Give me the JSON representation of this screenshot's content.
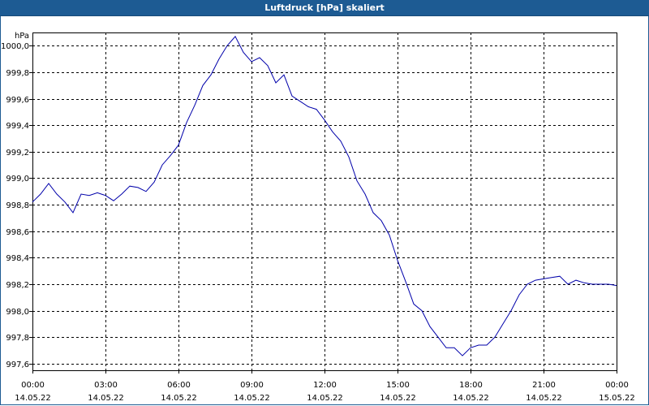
{
  "window": {
    "title": "Luftdruck [hPa] skaliert"
  },
  "colors": {
    "title_bar": "#1d5b93",
    "line": "#0000aa",
    "grid": "#000000"
  },
  "chart_data": {
    "type": "line",
    "title": "Luftdruck [hPa] skaliert",
    "ylabel": "hPa",
    "xlabel": "",
    "grid": true,
    "ylim": [
      997.55,
      1000.1
    ],
    "y_ticks": [
      {
        "value": 997.6,
        "label": "997,6"
      },
      {
        "value": 997.8,
        "label": "997,8"
      },
      {
        "value": 998.0,
        "label": "998,0"
      },
      {
        "value": 998.2,
        "label": "998,2"
      },
      {
        "value": 998.4,
        "label": "998,4"
      },
      {
        "value": 998.6,
        "label": "998,6"
      },
      {
        "value": 998.8,
        "label": "998,8"
      },
      {
        "value": 999.0,
        "label": "999,0"
      },
      {
        "value": 999.2,
        "label": "999,2"
      },
      {
        "value": 999.4,
        "label": "999,4"
      },
      {
        "value": 999.6,
        "label": "999,6"
      },
      {
        "value": 999.8,
        "label": "999,8"
      },
      {
        "value": 1000.0,
        "label": "1000,0"
      }
    ],
    "x_ticks": [
      {
        "time": "00:00",
        "date": "14.05.22"
      },
      {
        "time": "03:00",
        "date": "14.05.22"
      },
      {
        "time": "06:00",
        "date": "14.05.22"
      },
      {
        "time": "09:00",
        "date": "14.05.22"
      },
      {
        "time": "12:00",
        "date": "14.05.22"
      },
      {
        "time": "15:00",
        "date": "14.05.22"
      },
      {
        "time": "18:00",
        "date": "14.05.22"
      },
      {
        "time": "21:00",
        "date": "14.05.22"
      },
      {
        "time": "00:00",
        "date": "15.05.22"
      }
    ],
    "series": [
      {
        "x": [
          "00:00",
          "00:20",
          "00:40",
          "01:00",
          "01:20",
          "01:40",
          "02:00",
          "02:20",
          "02:40",
          "03:00",
          "03:20",
          "03:40",
          "04:00",
          "04:20",
          "04:40",
          "05:00",
          "05:20",
          "05:40",
          "06:00",
          "06:20",
          "06:40",
          "07:00",
          "07:20",
          "07:40",
          "08:00",
          "08:20",
          "08:40",
          "09:00",
          "09:20",
          "09:40",
          "10:00",
          "10:20",
          "10:40",
          "11:00",
          "11:20",
          "11:40",
          "12:00",
          "12:20",
          "12:40",
          "13:00",
          "13:20",
          "13:40",
          "14:00",
          "14:20",
          "14:40",
          "15:00",
          "15:20",
          "15:40",
          "16:00",
          "16:20",
          "16:40",
          "17:00",
          "17:20",
          "17:40",
          "18:00",
          "18:20",
          "18:40",
          "19:00",
          "19:20",
          "19:40",
          "20:00",
          "20:20",
          "20:40",
          "21:00",
          "21:20",
          "21:40",
          "22:00",
          "22:20",
          "22:40",
          "23:00",
          "23:20",
          "23:40",
          "24:00"
        ],
        "values": [
          998.82,
          998.88,
          998.96,
          998.88,
          998.82,
          998.74,
          998.88,
          998.87,
          998.89,
          998.87,
          998.83,
          998.88,
          998.94,
          998.93,
          998.9,
          998.97,
          999.1,
          999.17,
          999.25,
          999.42,
          999.55,
          999.7,
          999.78,
          999.9,
          1000.0,
          1000.07,
          999.95,
          999.88,
          999.91,
          999.85,
          999.72,
          999.78,
          999.62,
          999.58,
          999.54,
          999.52,
          999.44,
          999.35,
          999.28,
          999.16,
          998.98,
          998.88,
          998.74,
          998.68,
          998.57,
          998.38,
          998.22,
          998.05,
          998.0,
          997.88,
          997.8,
          997.72,
          997.72,
          997.66,
          997.72,
          997.74,
          997.74,
          997.8,
          997.9,
          998.0,
          998.12,
          998.2,
          998.23,
          998.24,
          998.25,
          998.26,
          998.2,
          998.23,
          998.21,
          998.2,
          998.2,
          998.2,
          998.19
        ]
      }
    ]
  }
}
